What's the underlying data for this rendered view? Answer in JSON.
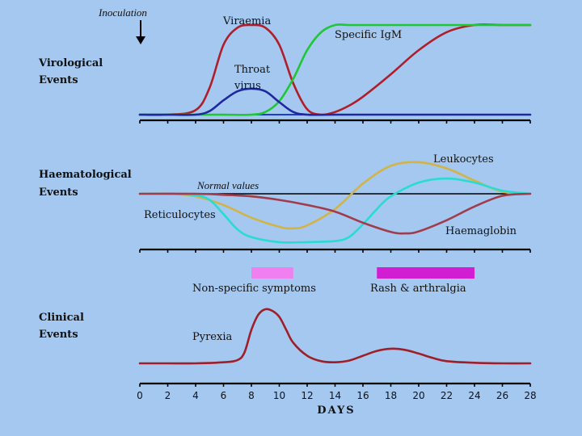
{
  "colors": {
    "background": "#a4c8f0",
    "viraemia": "#b01e2a",
    "igm": "#1ec832",
    "throat": "#1e28a0",
    "baseline_blue": "#1e3cc8",
    "leukocytes": "#d2b446",
    "reticulocytes": "#28dcd2",
    "haemoglobin": "#a03c4b",
    "normal_line": "#000000",
    "pyrexia": "#a01e28",
    "nonspecific_bar": "#f080f0",
    "rash_bar": "#d21ed2",
    "axis": "#000000"
  },
  "annotations": {
    "inoculation": "Inoculation",
    "inoculation_arrow": "down-arrow-icon"
  },
  "sections": {
    "virological": {
      "line1": "Virological",
      "line2": "Events"
    },
    "haematological": {
      "line1": "Haematological",
      "line2": "Events"
    },
    "clinical": {
      "line1": "Clinical",
      "line2": "Events"
    }
  },
  "labels": {
    "viraemia": "Viraemia",
    "specific_igm": "Specific IgM",
    "throat_line1": "Throat",
    "throat_line2": "virus",
    "leukocytes": "Leukocytes",
    "normal_values": "Normal values",
    "reticulocytes": "Reticulocytes",
    "haemaglobin": "Haemaglobin",
    "nonspecific": "Non-specific symptoms",
    "rash": "Rash & arthralgia",
    "pyrexia": "Pyrexia"
  },
  "chart_data": {
    "type": "line",
    "x_axis": {
      "label": "DAYS",
      "ticks": [
        0,
        2,
        4,
        6,
        8,
        10,
        12,
        14,
        16,
        18,
        20,
        22,
        24,
        26,
        28
      ],
      "range": [
        0,
        28
      ]
    },
    "panels": [
      {
        "name": "Virological Events",
        "y_range": [
          0,
          1
        ],
        "series": [
          {
            "name": "Viraemia",
            "color_key": "viraemia",
            "x": [
              0,
              2,
              4,
              5,
              6,
              7,
              8,
              9,
              10,
              11,
              12,
              13,
              14,
              15,
              16,
              18,
              20,
              22,
              24,
              26,
              28
            ],
            "y": [
              0,
              0,
              0.05,
              0.3,
              0.78,
              0.97,
              1.0,
              0.97,
              0.78,
              0.35,
              0.06,
              0,
              0.03,
              0.1,
              0.2,
              0.45,
              0.72,
              0.92,
              1.0,
              1.0,
              1.0
            ]
          },
          {
            "name": "Specific IgM",
            "color_key": "igm",
            "x": [
              0,
              2,
              4,
              6,
              8,
              9,
              10,
              11,
              12,
              13,
              14,
              15,
              16,
              18,
              20,
              22,
              24,
              26,
              28
            ],
            "y": [
              0,
              0,
              0,
              0,
              0,
              0.03,
              0.15,
              0.4,
              0.72,
              0.92,
              1.0,
              1.0,
              1.0,
              1.0,
              1.0,
              1.0,
              1.0,
              1.0,
              1.0
            ]
          },
          {
            "name": "Throat virus",
            "color_key": "throat",
            "x": [
              0,
              2,
              4,
              5,
              6,
              7,
              8,
              9,
              10,
              11,
              12,
              14,
              16,
              18,
              20,
              22,
              24,
              26,
              28
            ],
            "y": [
              0,
              0,
              0,
              0.04,
              0.16,
              0.26,
              0.29,
              0.26,
              0.14,
              0.03,
              0,
              0,
              0,
              0,
              0,
              0,
              0,
              0,
              0
            ]
          }
        ]
      },
      {
        "name": "Haematological Events",
        "y_range": [
          -1,
          1
        ],
        "series": [
          {
            "name": "Normal values",
            "color_key": "normal_line",
            "x": [
              0,
              28
            ],
            "y": [
              0,
              0
            ]
          },
          {
            "name": "Leukocytes",
            "color_key": "leukocytes",
            "x": [
              0,
              2,
              4,
              6,
              8,
              10,
              11,
              12,
              14,
              16,
              18,
              20,
              22,
              24,
              26,
              28
            ],
            "y": [
              0,
              0,
              -0.05,
              -0.22,
              -0.47,
              -0.65,
              -0.68,
              -0.62,
              -0.3,
              0.2,
              0.55,
              0.62,
              0.5,
              0.26,
              0.04,
              0
            ]
          },
          {
            "name": "Reticulocytes",
            "color_key": "reticulocytes",
            "x": [
              0,
              2,
              4,
              5,
              6,
              7,
              8,
              10,
              12,
              14,
              15,
              16,
              17,
              18,
              20,
              22,
              24,
              26,
              28
            ],
            "y": [
              0,
              0,
              -0.03,
              -0.12,
              -0.4,
              -0.7,
              -0.85,
              -0.95,
              -0.95,
              -0.93,
              -0.85,
              -0.6,
              -0.3,
              -0.05,
              0.22,
              0.3,
              0.22,
              0.06,
              0
            ]
          },
          {
            "name": "Haemaglobin",
            "color_key": "haemoglobin",
            "x": [
              0,
              4,
              6,
              8,
              10,
              12,
              14,
              16,
              18,
              19,
              20,
              22,
              24,
              26,
              28
            ],
            "y": [
              0,
              0,
              -0.02,
              -0.05,
              -0.12,
              -0.22,
              -0.35,
              -0.57,
              -0.75,
              -0.78,
              -0.74,
              -0.52,
              -0.25,
              -0.04,
              0
            ]
          }
        ]
      },
      {
        "name": "Clinical Events",
        "bars": [
          {
            "name": "Non-specific symptoms",
            "color_key": "nonspecific_bar",
            "start": 8,
            "end": 11
          },
          {
            "name": "Rash & arthralgia",
            "color_key": "rash_bar",
            "start": 17,
            "end": 24
          }
        ],
        "y_range": [
          0,
          1
        ],
        "series": [
          {
            "name": "Pyrexia",
            "color_key": "pyrexia",
            "x": [
              0,
              2,
              4,
              6,
              7,
              7.5,
              8,
              8.5,
              9,
              9.5,
              10,
              10.5,
              11,
              12,
              13,
              14,
              15,
              16,
              17,
              18,
              19,
              20,
              21,
              22,
              24,
              26,
              28
            ],
            "y": [
              0,
              0,
              0,
              0.02,
              0.06,
              0.2,
              0.62,
              0.9,
              1.0,
              0.97,
              0.86,
              0.62,
              0.38,
              0.14,
              0.04,
              0.02,
              0.05,
              0.14,
              0.23,
              0.27,
              0.25,
              0.18,
              0.1,
              0.04,
              0.01,
              0,
              0
            ]
          }
        ]
      }
    ]
  }
}
